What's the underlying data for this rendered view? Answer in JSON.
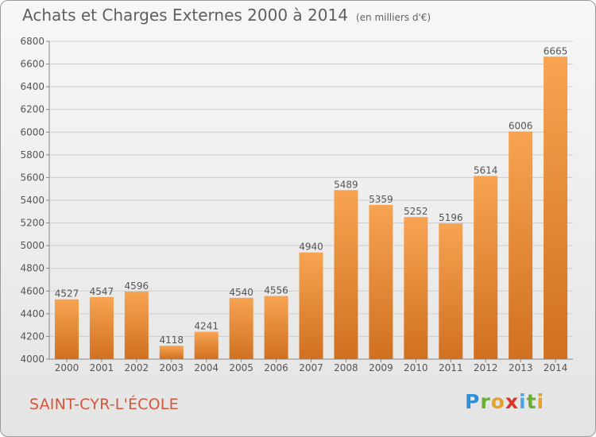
{
  "title": "Achats et Charges Externes 2000 à 2014",
  "subtitle": "(en milliers d'€)",
  "place": "SAINT-CYR-L'ÉCOLE",
  "logo": {
    "text": "Proxiti",
    "colors": [
      "#2f8fd8",
      "#6ab030",
      "#e5a128",
      "#d9352a",
      "#4aa6e2",
      "#6ab030",
      "#e5a128"
    ]
  },
  "colors": {
    "bar_light": "#f7a452",
    "bar_dark": "#d07020",
    "grid": "#cccccc",
    "text": "#555555"
  },
  "chart_data": {
    "type": "bar",
    "categories": [
      "2000",
      "2001",
      "2002",
      "2003",
      "2004",
      "2005",
      "2006",
      "2007",
      "2008",
      "2009",
      "2010",
      "2011",
      "2012",
      "2013",
      "2014"
    ],
    "values": [
      4527,
      4547,
      4596,
      4118,
      4241,
      4540,
      4556,
      4940,
      5489,
      5359,
      5252,
      5196,
      5614,
      6006,
      6665
    ],
    "title": "Achats et Charges Externes 2000 à 2014",
    "ylim": [
      4000,
      6800
    ],
    "yticks": [
      4000,
      4200,
      4400,
      4600,
      4800,
      5000,
      5200,
      5400,
      5600,
      5800,
      6000,
      6200,
      6400,
      6600,
      6800
    ],
    "grid": true,
    "legend": "none"
  }
}
